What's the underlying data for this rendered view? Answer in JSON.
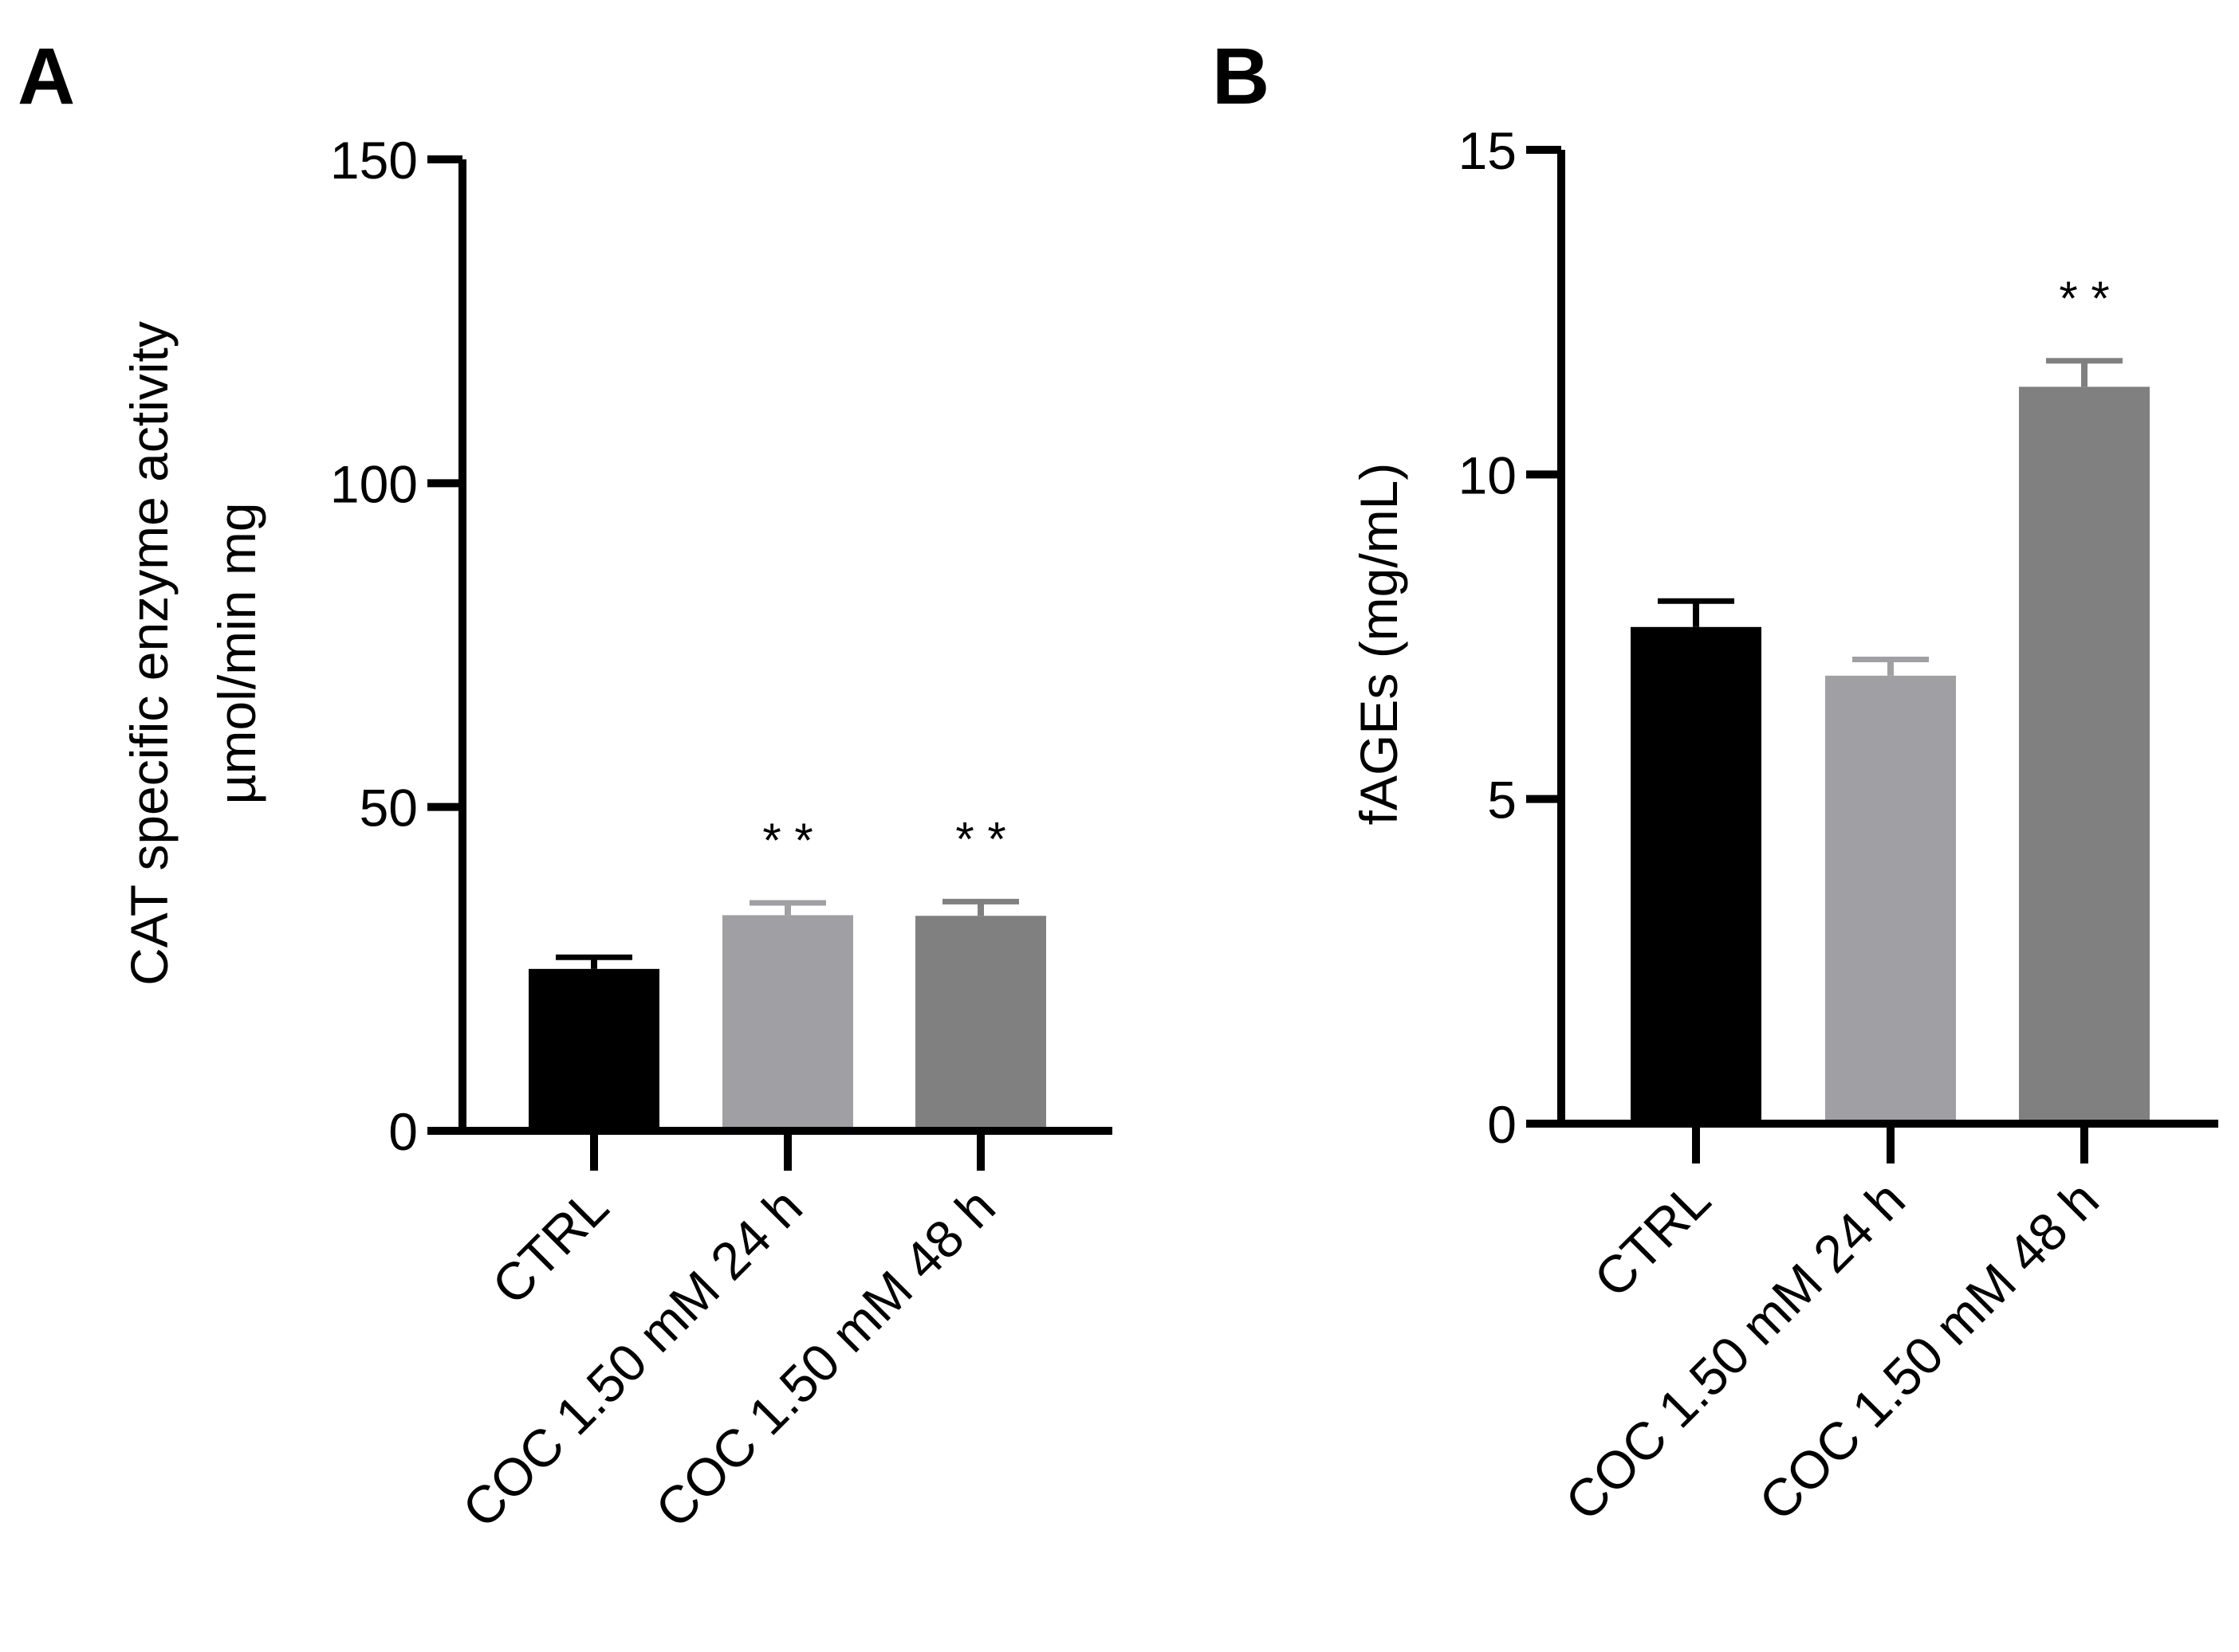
{
  "chart_data": [
    {
      "panel_label": "A",
      "type": "bar",
      "categories": [
        "CTRL",
        "COC 1.50 mM 24 h",
        "COC 1.50 mM 48 h"
      ],
      "values": [
        25,
        33.3,
        33.2
      ],
      "errors": [
        1.8,
        1.9,
        2.2
      ],
      "significance": [
        "",
        "**",
        "**"
      ],
      "ylabel_line1": "CAT specific enzyme activity",
      "ylabel_line2": "µmol/min mg",
      "ylim": [
        0,
        150
      ],
      "yticks": [
        0,
        50,
        100,
        150
      ],
      "ytick_labels": [
        "0",
        "50",
        "100",
        "150"
      ],
      "colors": [
        "#000000",
        "#a0a0a4",
        "#808080"
      ]
    },
    {
      "panel_label": "B",
      "type": "bar",
      "categories": [
        "CTRL",
        "COC 1.50 mM 24 h",
        "COC 1.50 mM 48 h"
      ],
      "values": [
        7.65,
        6.9,
        11.35
      ],
      "errors": [
        0.4,
        0.25,
        0.4
      ],
      "significance": [
        "",
        "",
        "**"
      ],
      "ylabel": "fAGEs (mg/mL)",
      "ylim": [
        0,
        15
      ],
      "yticks": [
        0,
        5,
        10,
        15
      ],
      "ytick_labels": [
        "0",
        "5",
        "10",
        "15"
      ],
      "colors": [
        "#000000",
        "#a0a0a4",
        "#808080"
      ]
    }
  ]
}
